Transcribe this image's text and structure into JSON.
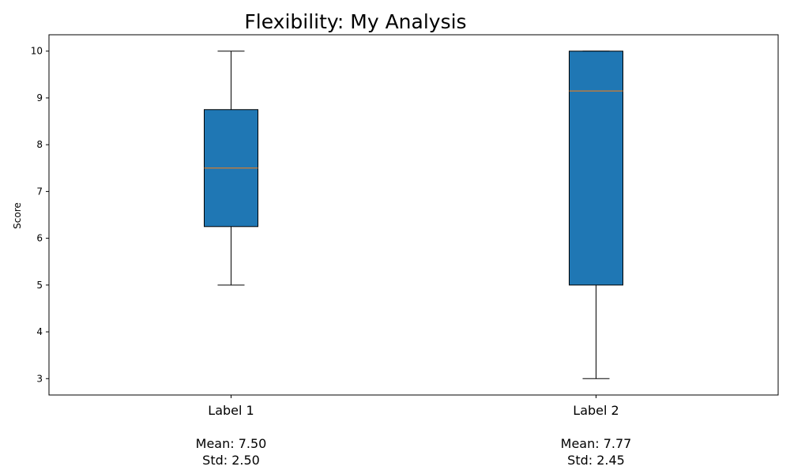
{
  "chart_data": {
    "type": "box",
    "title": "Flexibility: My Analysis",
    "xlabel": "",
    "ylabel": "Score",
    "ylim": [
      2.65,
      10.35
    ],
    "yticks": [
      3,
      4,
      5,
      6,
      7,
      8,
      9,
      10
    ],
    "grid": false,
    "box_color": "#1f77b4",
    "median_color": "#ff7f0e",
    "categories": [
      {
        "label": "Label 1",
        "mean_text": "Mean: 7.50",
        "std_text": "Std: 2.50",
        "whisker_low": 5,
        "q1": 6.25,
        "median": 7.5,
        "q3": 8.75,
        "whisker_high": 10
      },
      {
        "label": "Label 2",
        "mean_text": "Mean: 7.77",
        "std_text": "Std: 2.45",
        "whisker_low": 3,
        "q1": 5,
        "median": 9.15,
        "q3": 10,
        "whisker_high": 10
      }
    ]
  }
}
